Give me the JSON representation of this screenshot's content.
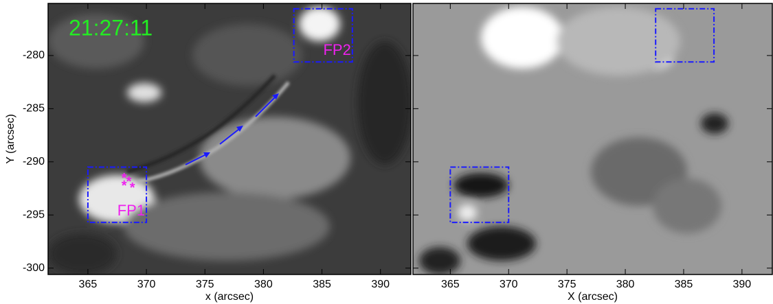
{
  "chart_data": [
    {
      "type": "image",
      "timestamp": "21:27:11",
      "timestamp_color": "#22ee22",
      "xlabel": "x (arcsec)",
      "ylabel": "Y (arcsec)",
      "xlim": [
        361.6,
        392.6
      ],
      "ylim": [
        -300.6,
        -275.1
      ],
      "xticks": [
        365,
        370,
        375,
        380,
        385,
        390
      ],
      "yticks": [
        -300,
        -295,
        -290,
        -285,
        -280
      ],
      "show_ytick_labels": true,
      "region_color": "#1a1aff",
      "label_color": "#ee22ee",
      "regions": [
        {
          "label": "FP1",
          "xlim": [
            365,
            370
          ],
          "ylim": [
            -295.7,
            -290.5
          ]
        },
        {
          "label": "FP2",
          "xlim": [
            382.6,
            387.6
          ],
          "ylim": [
            -280.6,
            -275.6
          ]
        }
      ],
      "markers": {
        "label": "*",
        "x": [
          368.1,
          368.5,
          368.1,
          368.8
        ],
        "y": [
          -291.3,
          -291.6,
          -292.0,
          -292.2
        ]
      }
    },
    {
      "type": "image",
      "xlabel": "X (arcsec)",
      "xlim": [
        361.8,
        392.6
      ],
      "ylim": [
        -300.6,
        -275.1
      ],
      "xticks": [
        365,
        370,
        375,
        380,
        385,
        390
      ],
      "yticks": [
        -300,
        -295,
        -290,
        -285,
        -280
      ],
      "show_ytick_labels": false,
      "region_color": "#1a1aff",
      "regions": [
        {
          "xlim": [
            365,
            370
          ],
          "ylim": [
            -295.7,
            -290.5
          ]
        },
        {
          "xlim": [
            382.6,
            387.6
          ],
          "ylim": [
            -280.6,
            -275.6
          ]
        }
      ]
    }
  ]
}
